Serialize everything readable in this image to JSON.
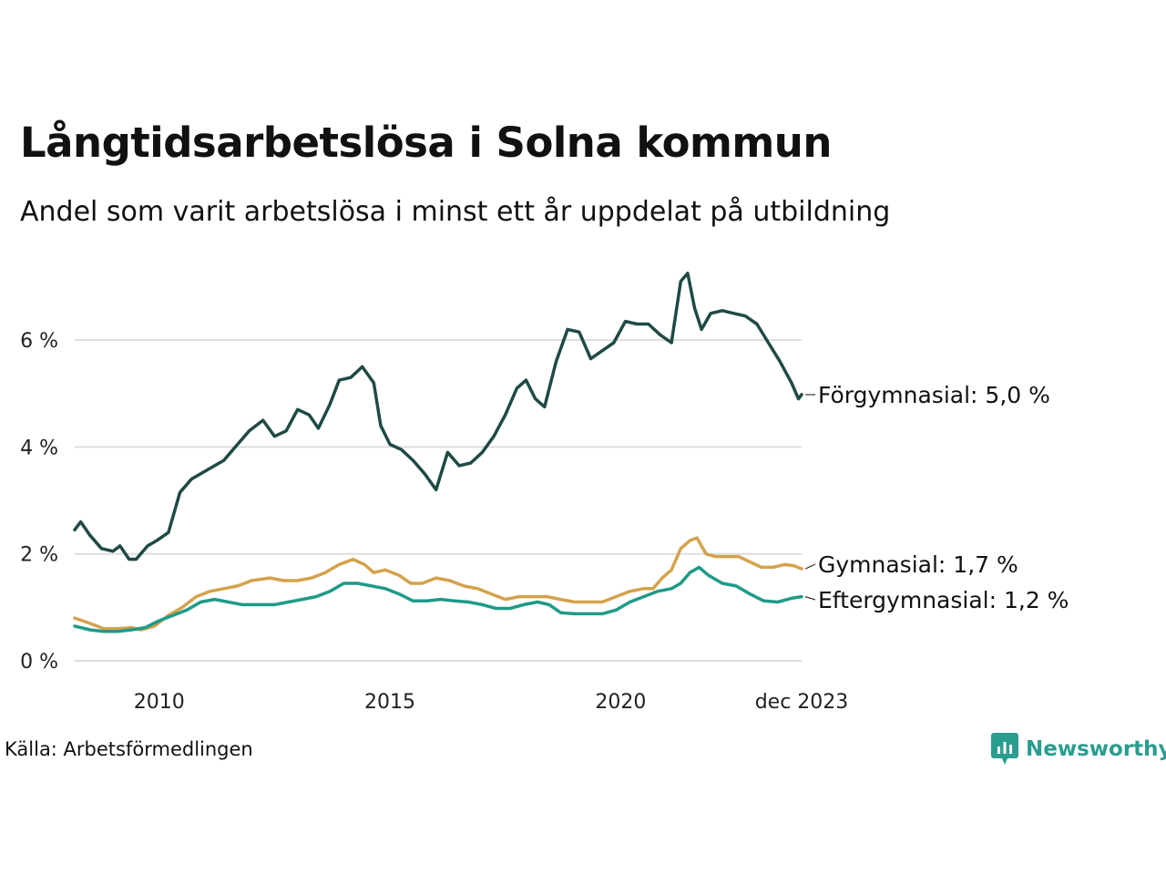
{
  "header": {
    "title": "Långtidsarbetslösa i Solna kommun",
    "subtitle": "Andel som varit arbetslösa i minst ett år uppdelat på utbildning"
  },
  "footer": {
    "source": "Källa: Arbetsförmedlingen",
    "brand": "Newsworthy"
  },
  "colors": {
    "forgymnasial": "#1f4a45",
    "gymnasial": "#d4a24c",
    "eftergymnasial": "#1f9a88",
    "grid": "#dddddd",
    "brand": "#2a9d8f"
  },
  "chart_data": {
    "type": "line",
    "title": "Långtidsarbetslösa i Solna kommun",
    "subtitle": "Andel som varit arbetslösa i minst ett år uppdelat på utbildning",
    "xlabel": "",
    "ylabel": "",
    "x_range": [
      2008.17,
      2023.92
    ],
    "ylim": [
      0,
      7.5
    ],
    "y_ticks": [
      0,
      2,
      4,
      6
    ],
    "y_tick_labels": [
      "0 %",
      "2 %",
      "4 %",
      "6 %"
    ],
    "x_ticks": [
      2010,
      2015,
      2020,
      2023.92
    ],
    "x_tick_labels": [
      "2010",
      "2015",
      "2020",
      "dec 2023"
    ],
    "grid": true,
    "series": [
      {
        "key": "forgymnasial",
        "name": "Förgymnasial",
        "end_label": "Förgymnasial: 5,0 %",
        "points": [
          [
            2008.17,
            2.45
          ],
          [
            2008.3,
            2.6
          ],
          [
            2008.5,
            2.35
          ],
          [
            2008.75,
            2.1
          ],
          [
            2009.0,
            2.05
          ],
          [
            2009.15,
            2.15
          ],
          [
            2009.35,
            1.9
          ],
          [
            2009.5,
            1.9
          ],
          [
            2009.75,
            2.15
          ],
          [
            2009.95,
            2.25
          ],
          [
            2010.2,
            2.4
          ],
          [
            2010.45,
            3.15
          ],
          [
            2010.7,
            3.4
          ],
          [
            2010.9,
            3.5
          ],
          [
            2011.1,
            3.6
          ],
          [
            2011.4,
            3.75
          ],
          [
            2011.65,
            4.0
          ],
          [
            2011.95,
            4.3
          ],
          [
            2012.25,
            4.5
          ],
          [
            2012.5,
            4.2
          ],
          [
            2012.75,
            4.3
          ],
          [
            2013.0,
            4.7
          ],
          [
            2013.25,
            4.6
          ],
          [
            2013.45,
            4.35
          ],
          [
            2013.7,
            4.8
          ],
          [
            2013.9,
            5.25
          ],
          [
            2014.15,
            5.3
          ],
          [
            2014.4,
            5.5
          ],
          [
            2014.65,
            5.2
          ],
          [
            2014.8,
            4.4
          ],
          [
            2015.0,
            4.05
          ],
          [
            2015.25,
            3.95
          ],
          [
            2015.5,
            3.75
          ],
          [
            2015.75,
            3.5
          ],
          [
            2016.0,
            3.2
          ],
          [
            2016.25,
            3.9
          ],
          [
            2016.5,
            3.65
          ],
          [
            2016.75,
            3.7
          ],
          [
            2017.0,
            3.9
          ],
          [
            2017.25,
            4.2
          ],
          [
            2017.5,
            4.6
          ],
          [
            2017.75,
            5.1
          ],
          [
            2017.95,
            5.25
          ],
          [
            2018.15,
            4.9
          ],
          [
            2018.35,
            4.75
          ],
          [
            2018.6,
            5.6
          ],
          [
            2018.85,
            6.2
          ],
          [
            2019.1,
            6.15
          ],
          [
            2019.35,
            5.65
          ],
          [
            2019.6,
            5.8
          ],
          [
            2019.85,
            5.95
          ],
          [
            2020.1,
            6.35
          ],
          [
            2020.35,
            6.3
          ],
          [
            2020.6,
            6.3
          ],
          [
            2020.85,
            6.1
          ],
          [
            2021.1,
            5.95
          ],
          [
            2021.3,
            7.1
          ],
          [
            2021.45,
            7.25
          ],
          [
            2021.6,
            6.6
          ],
          [
            2021.75,
            6.2
          ],
          [
            2021.95,
            6.5
          ],
          [
            2022.2,
            6.55
          ],
          [
            2022.45,
            6.5
          ],
          [
            2022.7,
            6.45
          ],
          [
            2022.95,
            6.3
          ],
          [
            2023.2,
            5.95
          ],
          [
            2023.45,
            5.6
          ],
          [
            2023.7,
            5.2
          ],
          [
            2023.85,
            4.9
          ],
          [
            2023.92,
            4.98
          ]
        ]
      },
      {
        "key": "gymnasial",
        "name": "Gymnasial",
        "end_label": "Gymnasial: 1,7 %",
        "points": [
          [
            2008.17,
            0.8
          ],
          [
            2008.5,
            0.7
          ],
          [
            2008.8,
            0.6
          ],
          [
            2009.1,
            0.6
          ],
          [
            2009.4,
            0.62
          ],
          [
            2009.6,
            0.58
          ],
          [
            2009.9,
            0.65
          ],
          [
            2010.2,
            0.85
          ],
          [
            2010.5,
            1.0
          ],
          [
            2010.8,
            1.2
          ],
          [
            2011.1,
            1.3
          ],
          [
            2011.4,
            1.35
          ],
          [
            2011.7,
            1.4
          ],
          [
            2012.0,
            1.5
          ],
          [
            2012.4,
            1.55
          ],
          [
            2012.7,
            1.5
          ],
          [
            2013.0,
            1.5
          ],
          [
            2013.3,
            1.55
          ],
          [
            2013.6,
            1.65
          ],
          [
            2013.9,
            1.8
          ],
          [
            2014.2,
            1.9
          ],
          [
            2014.45,
            1.8
          ],
          [
            2014.65,
            1.65
          ],
          [
            2014.9,
            1.7
          ],
          [
            2015.2,
            1.6
          ],
          [
            2015.45,
            1.45
          ],
          [
            2015.7,
            1.45
          ],
          [
            2016.0,
            1.55
          ],
          [
            2016.3,
            1.5
          ],
          [
            2016.6,
            1.4
          ],
          [
            2016.9,
            1.35
          ],
          [
            2017.2,
            1.25
          ],
          [
            2017.5,
            1.15
          ],
          [
            2017.8,
            1.2
          ],
          [
            2018.1,
            1.2
          ],
          [
            2018.4,
            1.2
          ],
          [
            2018.7,
            1.15
          ],
          [
            2019.0,
            1.1
          ],
          [
            2019.3,
            1.1
          ],
          [
            2019.6,
            1.1
          ],
          [
            2019.9,
            1.2
          ],
          [
            2020.2,
            1.3
          ],
          [
            2020.5,
            1.35
          ],
          [
            2020.7,
            1.35
          ],
          [
            2020.9,
            1.55
          ],
          [
            2021.1,
            1.7
          ],
          [
            2021.3,
            2.1
          ],
          [
            2021.5,
            2.25
          ],
          [
            2021.65,
            2.3
          ],
          [
            2021.85,
            2.0
          ],
          [
            2022.05,
            1.95
          ],
          [
            2022.3,
            1.95
          ],
          [
            2022.55,
            1.95
          ],
          [
            2022.8,
            1.85
          ],
          [
            2023.05,
            1.75
          ],
          [
            2023.3,
            1.75
          ],
          [
            2023.55,
            1.8
          ],
          [
            2023.75,
            1.78
          ],
          [
            2023.92,
            1.72
          ]
        ]
      },
      {
        "key": "eftergymnasial",
        "name": "Eftergymnasial",
        "end_label": "Eftergymnasial: 1,2 %",
        "points": [
          [
            2008.17,
            0.65
          ],
          [
            2008.5,
            0.58
          ],
          [
            2008.8,
            0.55
          ],
          [
            2009.1,
            0.55
          ],
          [
            2009.4,
            0.58
          ],
          [
            2009.7,
            0.62
          ],
          [
            2010.0,
            0.75
          ],
          [
            2010.3,
            0.85
          ],
          [
            2010.6,
            0.95
          ],
          [
            2010.9,
            1.1
          ],
          [
            2011.2,
            1.15
          ],
          [
            2011.5,
            1.1
          ],
          [
            2011.8,
            1.05
          ],
          [
            2012.1,
            1.05
          ],
          [
            2012.5,
            1.05
          ],
          [
            2012.8,
            1.1
          ],
          [
            2013.1,
            1.15
          ],
          [
            2013.4,
            1.2
          ],
          [
            2013.7,
            1.3
          ],
          [
            2014.0,
            1.45
          ],
          [
            2014.3,
            1.45
          ],
          [
            2014.6,
            1.4
          ],
          [
            2014.9,
            1.35
          ],
          [
            2015.2,
            1.25
          ],
          [
            2015.5,
            1.12
          ],
          [
            2015.8,
            1.12
          ],
          [
            2016.1,
            1.15
          ],
          [
            2016.4,
            1.12
          ],
          [
            2016.7,
            1.1
          ],
          [
            2017.0,
            1.05
          ],
          [
            2017.3,
            0.98
          ],
          [
            2017.6,
            0.98
          ],
          [
            2017.9,
            1.05
          ],
          [
            2018.2,
            1.1
          ],
          [
            2018.45,
            1.05
          ],
          [
            2018.7,
            0.9
          ],
          [
            2019.0,
            0.88
          ],
          [
            2019.3,
            0.88
          ],
          [
            2019.6,
            0.88
          ],
          [
            2019.9,
            0.95
          ],
          [
            2020.2,
            1.1
          ],
          [
            2020.5,
            1.2
          ],
          [
            2020.8,
            1.3
          ],
          [
            2021.1,
            1.35
          ],
          [
            2021.3,
            1.45
          ],
          [
            2021.5,
            1.65
          ],
          [
            2021.7,
            1.75
          ],
          [
            2021.9,
            1.6
          ],
          [
            2022.2,
            1.45
          ],
          [
            2022.5,
            1.4
          ],
          [
            2022.8,
            1.25
          ],
          [
            2023.1,
            1.12
          ],
          [
            2023.4,
            1.1
          ],
          [
            2023.7,
            1.17
          ],
          [
            2023.92,
            1.2
          ]
        ]
      }
    ]
  }
}
